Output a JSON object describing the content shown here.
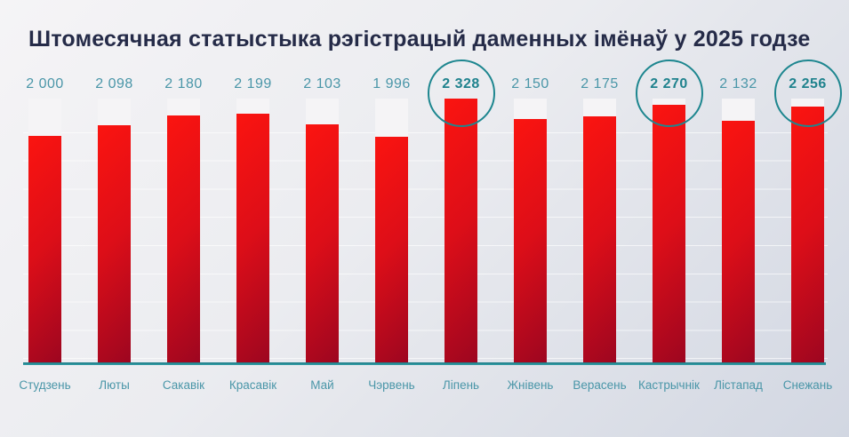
{
  "title": "Штомесячная статыстыка рэгістрацый даменных імёнаў у 2025 годзе",
  "chart_data": {
    "type": "bar",
    "title": "Штомесячная статыстыка рэгістрацый даменных імёнаў у 2025 годзе",
    "categories": [
      "Студзень",
      "Люты",
      "Сакавік",
      "Красавік",
      "Май",
      "Чэрвень",
      "Ліпень",
      "Жнівень",
      "Верасень",
      "Кастрычнік",
      "Лістапад",
      "Снежань"
    ],
    "values": [
      2000,
      2098,
      2180,
      2199,
      2103,
      1996,
      2328,
      2150,
      2175,
      2270,
      2132,
      2256
    ],
    "value_labels": [
      "2 000",
      "2 098",
      "2 180",
      "2 199",
      "2 103",
      "1 996",
      "2 328",
      "2 150",
      "2 175",
      "2 270",
      "2 132",
      "2 256"
    ],
    "highlighted_indices": [
      6,
      9,
      11
    ],
    "xlabel": "",
    "ylabel": "",
    "ylim": [
      0,
      2328
    ],
    "grid": "horizontal-faint",
    "legend": "none"
  },
  "colors": {
    "title_text": "#252b48",
    "value_label": "#4a96a8",
    "highlighted_value_label": "#1f828d",
    "month_label": "#4a96a8",
    "highlight_circle": "#1d868f",
    "bar_gradient_start": "#fb1410",
    "bar_gradient_end": "#9c0620",
    "bar_track": "#f5f4f6",
    "baseline": "#2b8e97",
    "background_start": "#f5f4f6",
    "background_end": "#d2d7e2"
  }
}
